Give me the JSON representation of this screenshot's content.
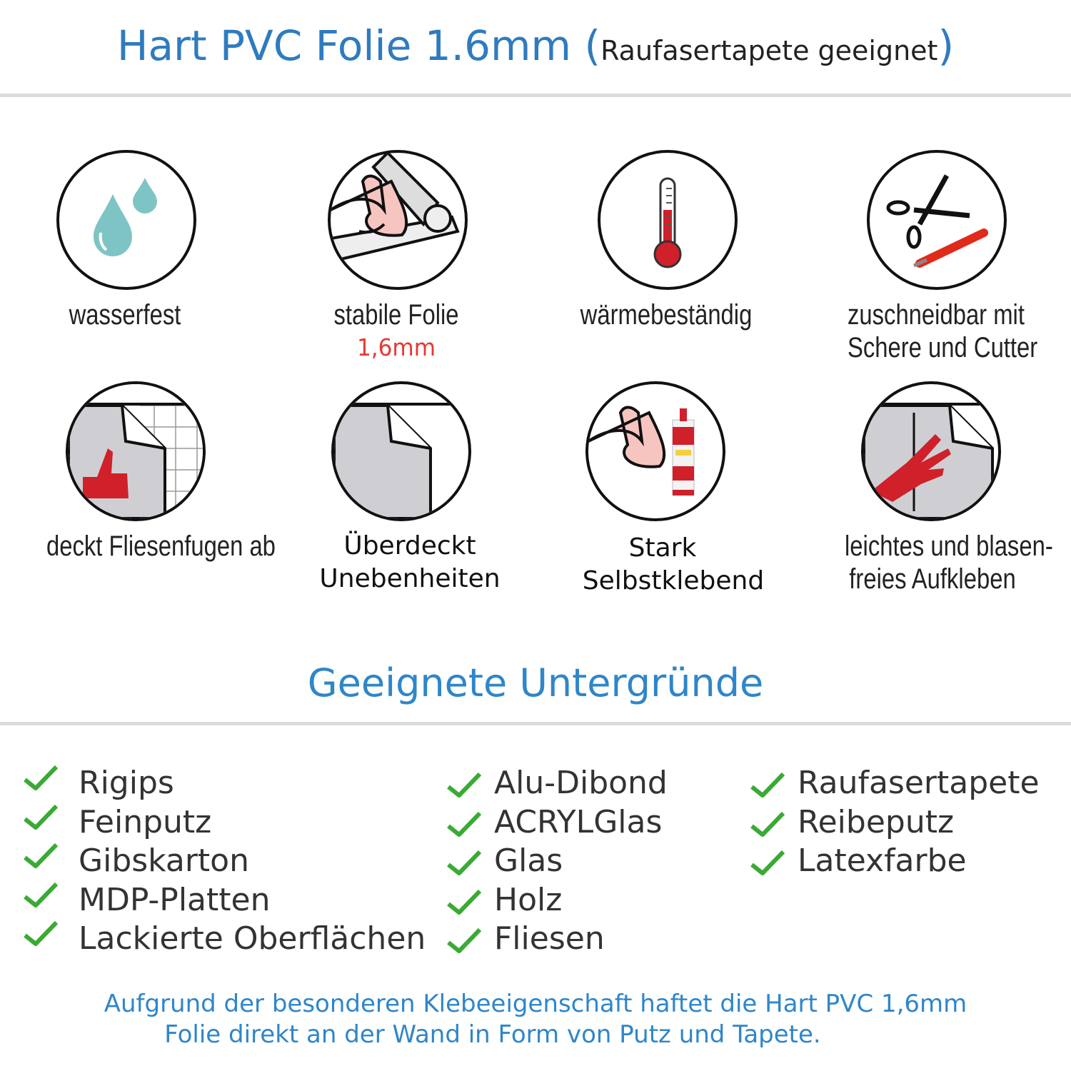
{
  "header": {
    "title": "Hart PVC Folie 1.6mm",
    "open_paren": "(",
    "subtitle": "Raufasertapete geeignet",
    "close_paren": ")"
  },
  "features": [
    {
      "icon": "water-drops-icon",
      "label": "wasserfest"
    },
    {
      "icon": "strong-arm-foil-icon",
      "label": "stabile Folie",
      "note": "1,6mm"
    },
    {
      "icon": "thermometer-icon",
      "label": "wärmebeständig"
    },
    {
      "icon": "scissors-cutter-icon",
      "label_line1": "zuschneidbar mit",
      "label_line2": "Schere und Cutter"
    },
    {
      "icon": "tile-cover-thumb-icon",
      "label": "deckt Fliesenfugen ab"
    },
    {
      "icon": "foil-corner-icon",
      "label_line1": "Überdeckt",
      "label_line2": "Unebenheiten"
    },
    {
      "icon": "arm-glue-icon",
      "label_line1": "Stark",
      "label_line2": "Selbstklebend"
    },
    {
      "icon": "hand-smooth-icon",
      "label_line1": "leichtes und blasen-",
      "label_line2": "freies Aufkleben"
    }
  ],
  "surfaces": {
    "heading": "Geeignete Untergründe",
    "columns": [
      [
        "Rigips",
        "Feinputz",
        "Gibskarton",
        "MDP-Platten",
        "Lackierte Oberflächen"
      ],
      [
        "Alu-Dibond",
        "ACRYLGlas",
        "Glas",
        "Holz",
        "Fliesen"
      ],
      [
        "Raufasertapete",
        "Reibeputz",
        "Latexfarbe"
      ]
    ]
  },
  "footer": {
    "line1": "Aufgrund der besonderen Klebeeigenschaft haftet die Hart PVC 1,6mm",
    "line2": "Folie direkt an der Wand in Form von Putz und Tapete."
  },
  "colors": {
    "title": "#2f7bbf",
    "heading": "#2f86c9",
    "check": "#3aaa35",
    "accent_red": "#e53935",
    "drop": "#7fc4c4"
  }
}
